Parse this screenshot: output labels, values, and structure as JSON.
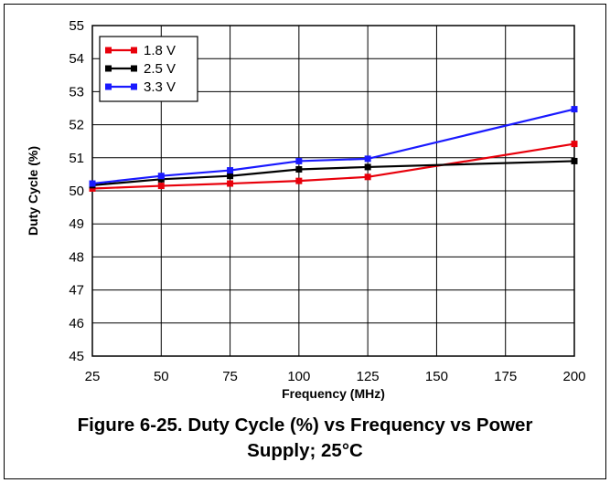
{
  "chart_data": {
    "type": "line",
    "xlabel": "Frequency (MHz)",
    "ylabel": "Duty Cycle (%)",
    "xlim": [
      25,
      200
    ],
    "ylim": [
      45,
      55
    ],
    "xticks": [
      "25",
      "50",
      "75",
      "100",
      "125",
      "150",
      "175",
      "200"
    ],
    "yticks": [
      "45",
      "46",
      "47",
      "48",
      "49",
      "50",
      "51",
      "52",
      "53",
      "54",
      "55"
    ],
    "grid": true,
    "legend_position": "top-left",
    "series": [
      {
        "name": "1.8 V",
        "color": "#e8000b",
        "x": [
          25,
          50,
          75,
          100,
          125,
          200
        ],
        "y": [
          50.07,
          50.15,
          50.22,
          50.3,
          50.42,
          51.42
        ]
      },
      {
        "name": "2.5 V",
        "color": "#000000",
        "x": [
          25,
          50,
          75,
          100,
          125,
          200
        ],
        "y": [
          50.17,
          50.35,
          50.45,
          50.65,
          50.72,
          50.9
        ]
      },
      {
        "name": "3.3 V",
        "color": "#1a1aff",
        "x": [
          25,
          50,
          75,
          100,
          125,
          200
        ],
        "y": [
          50.22,
          50.45,
          50.62,
          50.9,
          50.97,
          52.47
        ]
      }
    ]
  },
  "caption": {
    "line1": "Figure 6-25. Duty Cycle (%) vs Frequency vs Power",
    "line2": "Supply; 25°C"
  }
}
